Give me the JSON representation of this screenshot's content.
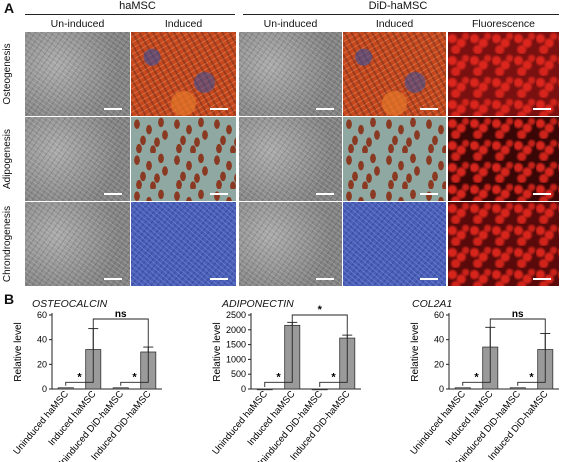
{
  "panel_a": {
    "letter": "A",
    "group_left": "haMSC",
    "group_right": "DiD-haMSC",
    "columns": [
      "Un-induced",
      "Induced",
      "Un-induced",
      "Induced",
      "Fluorescence"
    ],
    "rows": [
      "Osteogenesis",
      "Adipogenesis",
      "Chrondrogenesis"
    ]
  },
  "panel_b": {
    "letter": "B"
  },
  "chart_data": [
    {
      "type": "bar",
      "title": "OSTEOCALCIN",
      "ylabel": "Relative level",
      "categories": [
        "Uninduced haMSC",
        "Induced haMSC",
        "Uninduced DiD-haMSC",
        "Induced DiD-haMSC"
      ],
      "values": [
        1,
        32,
        1,
        30
      ],
      "errors": [
        0,
        17,
        0,
        4
      ],
      "ylim": [
        0,
        60
      ],
      "yticks": [
        "0",
        "20",
        "40",
        "60"
      ],
      "annotations": [
        "*",
        "*",
        "ns"
      ]
    },
    {
      "type": "bar",
      "title": "ADIPONECTIN",
      "ylabel": "Relative level",
      "categories": [
        "Uninduced haMSC",
        "Induced haMSC",
        "Uninduced DiD-haMSC",
        "Induced DiD-haMSC"
      ],
      "values": [
        1,
        2150,
        1,
        1720
      ],
      "errors": [
        0,
        100,
        0,
        100
      ],
      "ylim": [
        0,
        2500
      ],
      "yticks": [
        "0",
        "500",
        "1000",
        "1500",
        "2000",
        "2500"
      ],
      "annotations": [
        "*",
        "*",
        "*"
      ]
    },
    {
      "type": "bar",
      "title": "COL2A1",
      "ylabel": "Relative level",
      "categories": [
        "Uninduced haMSC",
        "Induced haMSC",
        "Uninduced DiD-haMSC",
        "Induced DiD-haMSC"
      ],
      "values": [
        1,
        34,
        1,
        32
      ],
      "errors": [
        0,
        16,
        0,
        13
      ],
      "ylim": [
        0,
        60
      ],
      "yticks": [
        "0",
        "20",
        "40",
        "60"
      ],
      "annotations": [
        "*",
        "*",
        "ns"
      ]
    }
  ]
}
